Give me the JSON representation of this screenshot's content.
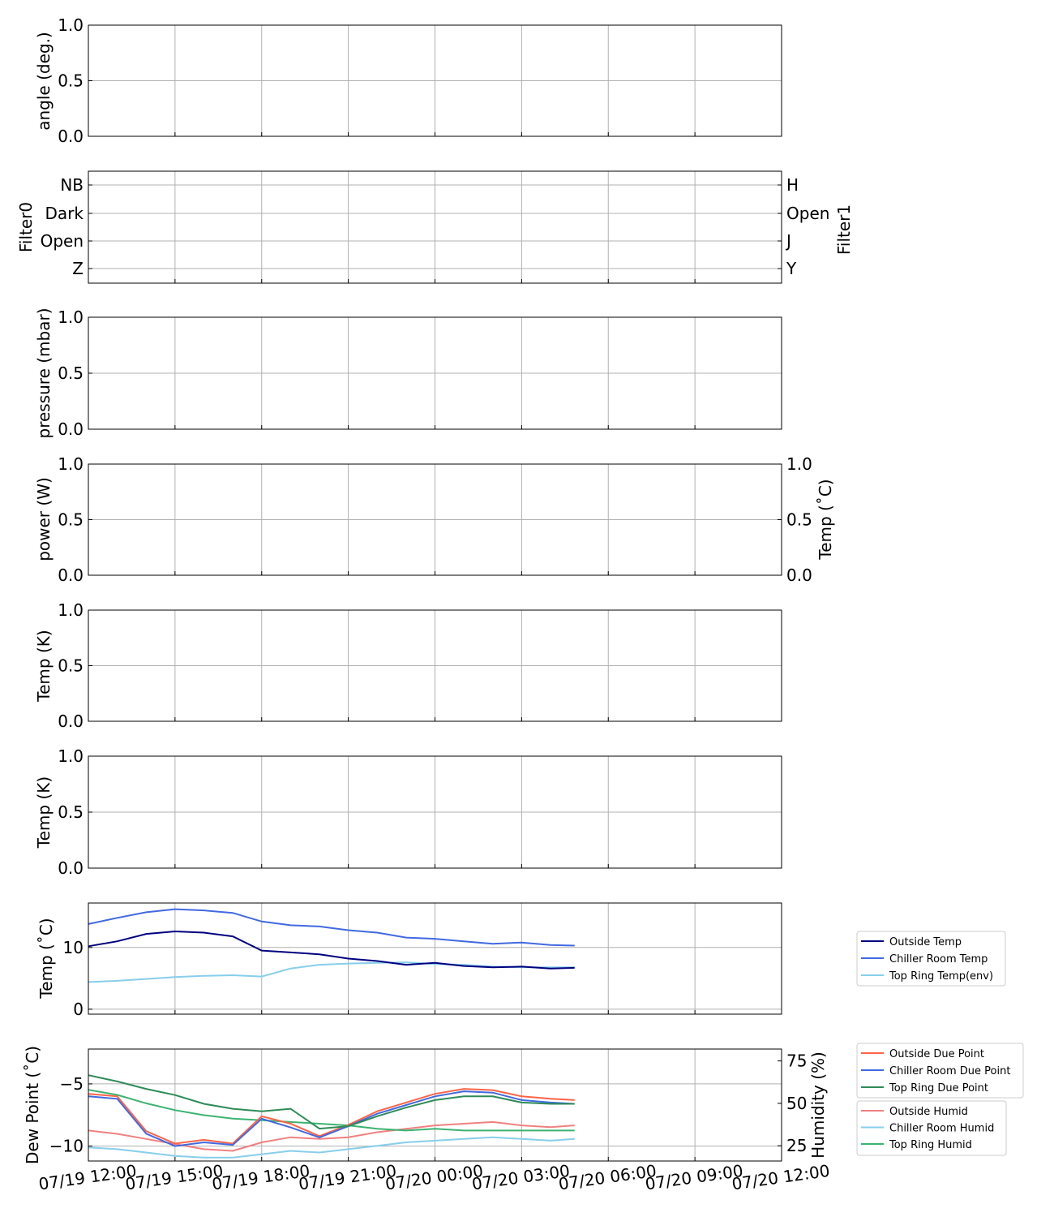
{
  "x_tick_labels": [
    "07/19 12:00",
    "07/19 15:00",
    "07/19 18:00",
    "07/19 21:00",
    "07/20 00:00",
    "07/20 03:00",
    "07/20 06:00",
    "07/20 09:00",
    "07/20 12:00"
  ],
  "colors": {
    "red": "#ff0000",
    "magenta": "#c000c0",
    "navy": "#000080",
    "royal": "#4169e1",
    "sky": "#87ceeb",
    "tomato": "#ff6347",
    "seagreen": "#2e8b57",
    "lightcoral": "#f08080",
    "mediumseagreen": "#3cb371"
  },
  "panels": {
    "angle": {
      "ylabel": "angle (deg.)",
      "yticks": [
        "1.0",
        "0.5",
        "0.0"
      ]
    },
    "filter": {
      "ylabel_left": "Filter0",
      "ylabel_right": "Filter1",
      "left_ticks": [
        "NB",
        "Dark",
        "Open",
        "Z"
      ],
      "right_ticks": [
        "H",
        "Open",
        "J",
        "Y"
      ]
    },
    "pressure": {
      "ylabel": "pressure (mbar)",
      "yticks": [
        "1.0",
        "0.5",
        "0.0"
      ]
    },
    "power": {
      "ylabel_left": "power (W)",
      "ylabel_right": "Temp (˚C)",
      "yticks": [
        "1.0",
        "0.5",
        "0.0"
      ],
      "yticks_right": [
        "1.0",
        "0.5",
        "0.0"
      ]
    },
    "tempK1": {
      "ylabel": "Temp (K)",
      "yticks": [
        "1.0",
        "0.5",
        "0.0"
      ]
    },
    "tempK2": {
      "ylabel": "Temp (K)",
      "yticks": [
        "1.0",
        "0.5",
        "0.0"
      ]
    },
    "tempC": {
      "ylabel": "Temp (˚C)",
      "yticks": [
        "10",
        "0"
      ]
    },
    "dew": {
      "ylabel_left": "Dew Point (˚C)",
      "ylabel_right": "Humidity (%)",
      "yticks": [
        "−5",
        "−10"
      ],
      "yticks_right": [
        "75",
        "50",
        "25"
      ]
    }
  },
  "legend_temp": [
    "Outside Temp",
    "Chiller Room Temp",
    "Top Ring Temp(env)"
  ],
  "legend_dew": [
    "Outside Due Point",
    "Chiller Room Due Point",
    "Top Ring Due Point"
  ],
  "legend_humid": [
    "Outside Humid",
    "Chiller Room Humid",
    "Top Ring Humid"
  ],
  "chart_data": [
    {
      "type": "line",
      "ylabel": "angle (deg.)",
      "ylim": [
        0,
        1
      ],
      "series": []
    },
    {
      "type": "line",
      "ylabel": "Filter0",
      "ylabel_right": "Filter1",
      "series": []
    },
    {
      "type": "line",
      "ylabel": "pressure (mbar)",
      "ylim": [
        0,
        1
      ],
      "series": []
    },
    {
      "type": "line",
      "ylabel": "power (W)",
      "ylabel_right": "Temp (˚C)",
      "ylim": [
        0,
        1
      ],
      "series": []
    },
    {
      "type": "line",
      "ylabel": "Temp (K)",
      "ylim": [
        0,
        1
      ],
      "series": []
    },
    {
      "type": "line",
      "ylabel": "Temp (K)",
      "ylim": [
        0,
        1
      ],
      "series": []
    },
    {
      "type": "line",
      "ylabel": "Temp (˚C)",
      "ylim": [
        -0.8,
        17.2
      ],
      "x": [
        "07/19 12:00",
        "07/19 13:00",
        "07/19 14:00",
        "07/19 15:00",
        "07/19 16:00",
        "07/19 17:00",
        "07/19 18:00",
        "07/19 19:00",
        "07/19 20:00",
        "07/19 21:00",
        "07/19 22:00",
        "07/19 23:00",
        "07/20 00:00",
        "07/20 01:00",
        "07/20 02:00",
        "07/20 03:00",
        "07/20 04:00",
        "07/20 04:50"
      ],
      "series": [
        {
          "name": "Outside Temp",
          "values": [
            10.2,
            11.0,
            12.2,
            12.6,
            12.4,
            11.8,
            9.5,
            9.2,
            8.9,
            8.2,
            7.8,
            7.2,
            7.5,
            7.0,
            6.8,
            6.9,
            6.6,
            6.7
          ]
        },
        {
          "name": "Chiller Room Temp",
          "values": [
            13.8,
            14.8,
            15.7,
            16.2,
            16.0,
            15.6,
            14.2,
            13.6,
            13.4,
            12.8,
            12.4,
            11.6,
            11.4,
            11.0,
            10.6,
            10.8,
            10.4,
            10.3
          ]
        },
        {
          "name": "Top Ring Temp(env)",
          "values": [
            4.4,
            4.6,
            4.9,
            5.2,
            5.4,
            5.5,
            5.3,
            6.6,
            7.2,
            7.4,
            7.5,
            7.6,
            7.3,
            7.2,
            6.9,
            6.8,
            6.8,
            6.8
          ]
        }
      ]
    },
    {
      "type": "line",
      "ylabel": "Dew Point (˚C)",
      "ylabel_right": "Humidity (%)",
      "ylim": [
        -11.2,
        -2.2
      ],
      "ylim_right": [
        16,
        82
      ],
      "x": [
        "07/19 12:00",
        "07/19 13:00",
        "07/19 14:00",
        "07/19 15:00",
        "07/19 16:00",
        "07/19 17:00",
        "07/19 18:00",
        "07/19 19:00",
        "07/19 20:00",
        "07/19 21:00",
        "07/19 22:00",
        "07/19 23:00",
        "07/20 00:00",
        "07/20 01:00",
        "07/20 02:00",
        "07/20 03:00",
        "07/20 04:00",
        "07/20 04:50"
      ],
      "series": [
        {
          "name": "Outside Due Point",
          "values": [
            -5.8,
            -6.0,
            -8.8,
            -9.8,
            -9.5,
            -9.8,
            -7.6,
            -8.2,
            -9.2,
            -8.3,
            -7.2,
            -6.5,
            -5.8,
            -5.4,
            -5.5,
            -6.0,
            -6.2,
            -6.3
          ]
        },
        {
          "name": "Chiller Room Due Point",
          "values": [
            -6.0,
            -6.2,
            -9.0,
            -10.0,
            -9.7,
            -9.9,
            -7.8,
            -8.5,
            -9.3,
            -8.4,
            -7.4,
            -6.7,
            -6.0,
            -5.6,
            -5.7,
            -6.3,
            -6.5,
            -6.6
          ]
        },
        {
          "name": "Top Ring Due Point",
          "values": [
            -4.3,
            -4.8,
            -5.4,
            -5.9,
            -6.6,
            -7.0,
            -7.2,
            -7.0,
            -8.6,
            -8.4,
            -7.6,
            -6.9,
            -6.3,
            -6.0,
            -6.0,
            -6.5,
            -6.6,
            -6.6
          ]
        },
        {
          "name": "Outside Humid",
          "values": [
            34,
            32,
            29,
            26,
            23,
            22,
            27,
            30,
            29,
            30,
            33,
            35,
            37,
            38,
            39,
            37,
            36,
            37
          ]
        },
        {
          "name": "Chiller Room Humid",
          "values": [
            24,
            23,
            21,
            19,
            18,
            18,
            20,
            22,
            21,
            23,
            25,
            27,
            28,
            29,
            30,
            29,
            28,
            29
          ]
        },
        {
          "name": "Top Ring Humid",
          "values": [
            58,
            55,
            50,
            46,
            43,
            41,
            40,
            39,
            38,
            37,
            35,
            34,
            35,
            34,
            34,
            34,
            34,
            34
          ]
        }
      ]
    }
  ]
}
